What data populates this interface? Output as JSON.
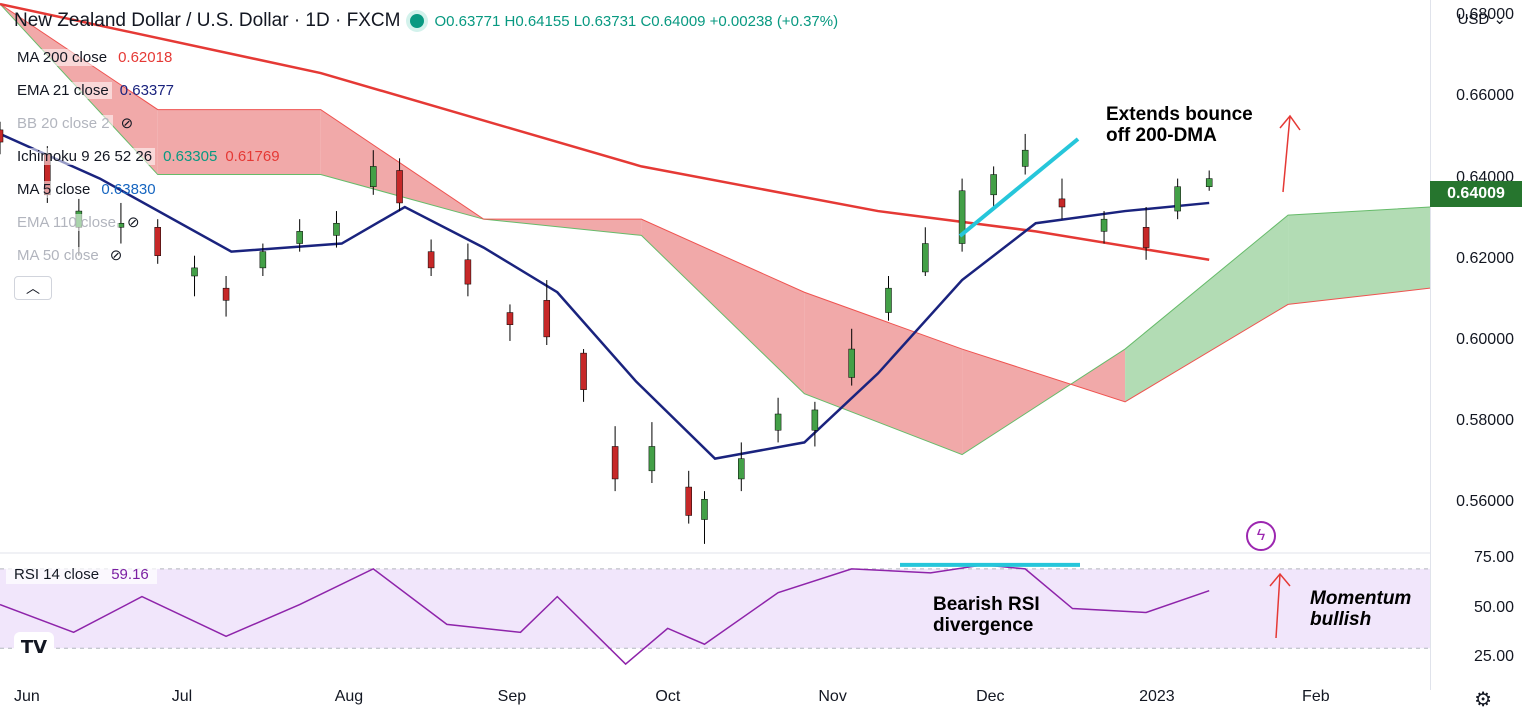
{
  "header": {
    "title": "New Zealand Dollar / U.S. Dollar · 1D · FXCM",
    "ohlc_text": "O0.63771 H0.64155 L0.63731 C0.64009 +0.00238 (+0.37%)"
  },
  "legend": [
    {
      "name": "MA 200 close",
      "value": "0.62018",
      "color": "#e53935",
      "faded": false
    },
    {
      "name": "EMA 21 close",
      "value": "0.63377",
      "color": "#1a237e",
      "faded": false
    },
    {
      "name": "BB 20 close 2",
      "value": "",
      "color": "#b2b5be",
      "faded": true,
      "hidden_icon": "eye-off-icon"
    },
    {
      "name": "Ichimoku 9 26 52 26",
      "value": "0.63305",
      "value2": "0.61769",
      "color": "#089981",
      "color2": "#e53935",
      "faded": false
    },
    {
      "name": "MA 5 close",
      "value": "0.63830",
      "color": "#1565c0",
      "faded": false
    },
    {
      "name": "EMA 110 close",
      "value": "",
      "color": "#b2b5be",
      "faded": true,
      "hidden_icon": "eye-off-icon"
    },
    {
      "name": "MA 50 close",
      "value": "",
      "color": "#b2b5be",
      "faded": true,
      "hidden_icon": "eye-off-icon"
    }
  ],
  "collapse_icon": "chevron-up-icon",
  "price_scale": {
    "currency": "USD",
    "currency_icon": "chevron-down-icon",
    "labels": [
      "0.68000",
      "0.66000",
      "0.64000",
      "0.62000",
      "0.60000",
      "0.58000",
      "0.56000"
    ],
    "last_price": "0.64009",
    "last_price_color": "#26752e"
  },
  "rsi": {
    "legend_name": "RSI 14 close",
    "legend_value": "59.16",
    "legend_color": "#7b1fa2",
    "labels": [
      "75.00",
      "50.00",
      "25.00"
    ],
    "band_color": "#f1e6fb",
    "upper": 70,
    "lower": 30
  },
  "time_axis": [
    "Jun",
    "Jul",
    "Aug",
    "Sep",
    "Oct",
    "Nov",
    "Dec",
    "2023",
    "Feb"
  ],
  "annotations": {
    "bounce": "Extends bounce\noff 200-DMA",
    "rsi_div": "Bearish RSI\ndivergence",
    "momentum": "Momentum\nbullish"
  },
  "colors": {
    "up": "#43a047",
    "down": "#c62828",
    "ma200": "#e53935",
    "ema21": "#1a237e",
    "ma5": "#1565c0",
    "cloud_bull": "#a5d6a7",
    "cloud_bear": "#ef9a9a",
    "trend_line": "#26c6da",
    "rsi_line": "#8e24aa"
  },
  "icons": {
    "logo": "tradingview-logo-icon",
    "settings": "gear-icon",
    "lightning": "lightning-icon"
  },
  "chart_data": {
    "type": "candlestick",
    "symbol": "NZDUSD",
    "timeframe": "1D",
    "ylim": [
      0.548,
      0.684
    ],
    "rsi_ylim": [
      18,
      78
    ],
    "x_range": [
      "2022-06-01",
      "2023-02-28"
    ],
    "candles": [
      {
        "date": "2022-06-01",
        "o": 0.652,
        "h": 0.654,
        "l": 0.646,
        "c": 0.649
      },
      {
        "date": "2022-06-10",
        "o": 0.646,
        "h": 0.648,
        "l": 0.634,
        "c": 0.636
      },
      {
        "date": "2022-06-16",
        "o": 0.628,
        "h": 0.635,
        "l": 0.621,
        "c": 0.632
      },
      {
        "date": "2022-06-24",
        "o": 0.628,
        "h": 0.634,
        "l": 0.624,
        "c": 0.629
      },
      {
        "date": "2022-07-01",
        "o": 0.628,
        "h": 0.63,
        "l": 0.619,
        "c": 0.621
      },
      {
        "date": "2022-07-08",
        "o": 0.616,
        "h": 0.621,
        "l": 0.611,
        "c": 0.618
      },
      {
        "date": "2022-07-14",
        "o": 0.613,
        "h": 0.616,
        "l": 0.606,
        "c": 0.61
      },
      {
        "date": "2022-07-21",
        "o": 0.618,
        "h": 0.624,
        "l": 0.616,
        "c": 0.622
      },
      {
        "date": "2022-07-28",
        "o": 0.624,
        "h": 0.63,
        "l": 0.622,
        "c": 0.627
      },
      {
        "date": "2022-08-04",
        "o": 0.626,
        "h": 0.632,
        "l": 0.623,
        "c": 0.629
      },
      {
        "date": "2022-08-11",
        "o": 0.638,
        "h": 0.647,
        "l": 0.636,
        "c": 0.643
      },
      {
        "date": "2022-08-16",
        "o": 0.642,
        "h": 0.645,
        "l": 0.632,
        "c": 0.634
      },
      {
        "date": "2022-08-22",
        "o": 0.622,
        "h": 0.625,
        "l": 0.616,
        "c": 0.618
      },
      {
        "date": "2022-08-29",
        "o": 0.62,
        "h": 0.624,
        "l": 0.611,
        "c": 0.614
      },
      {
        "date": "2022-09-06",
        "o": 0.607,
        "h": 0.609,
        "l": 0.6,
        "c": 0.604
      },
      {
        "date": "2022-09-13",
        "o": 0.61,
        "h": 0.615,
        "l": 0.599,
        "c": 0.601
      },
      {
        "date": "2022-09-20",
        "o": 0.597,
        "h": 0.598,
        "l": 0.585,
        "c": 0.588
      },
      {
        "date": "2022-09-26",
        "o": 0.574,
        "h": 0.579,
        "l": 0.563,
        "c": 0.566
      },
      {
        "date": "2022-10-03",
        "o": 0.568,
        "h": 0.58,
        "l": 0.565,
        "c": 0.574
      },
      {
        "date": "2022-10-10",
        "o": 0.564,
        "h": 0.568,
        "l": 0.555,
        "c": 0.557
      },
      {
        "date": "2022-10-13",
        "o": 0.556,
        "h": 0.563,
        "l": 0.55,
        "c": 0.561
      },
      {
        "date": "2022-10-20",
        "o": 0.566,
        "h": 0.575,
        "l": 0.563,
        "c": 0.571
      },
      {
        "date": "2022-10-27",
        "o": 0.578,
        "h": 0.586,
        "l": 0.575,
        "c": 0.582
      },
      {
        "date": "2022-11-03",
        "o": 0.578,
        "h": 0.585,
        "l": 0.574,
        "c": 0.583
      },
      {
        "date": "2022-11-10",
        "o": 0.591,
        "h": 0.603,
        "l": 0.589,
        "c": 0.598
      },
      {
        "date": "2022-11-17",
        "o": 0.607,
        "h": 0.616,
        "l": 0.605,
        "c": 0.613
      },
      {
        "date": "2022-11-24",
        "o": 0.617,
        "h": 0.628,
        "l": 0.616,
        "c": 0.624
      },
      {
        "date": "2022-12-01",
        "o": 0.624,
        "h": 0.64,
        "l": 0.622,
        "c": 0.637
      },
      {
        "date": "2022-12-07",
        "o": 0.636,
        "h": 0.643,
        "l": 0.633,
        "c": 0.641
      },
      {
        "date": "2022-12-13",
        "o": 0.643,
        "h": 0.651,
        "l": 0.641,
        "c": 0.647
      },
      {
        "date": "2022-12-20",
        "o": 0.635,
        "h": 0.64,
        "l": 0.63,
        "c": 0.633
      },
      {
        "date": "2022-12-28",
        "o": 0.627,
        "h": 0.632,
        "l": 0.624,
        "c": 0.63
      },
      {
        "date": "2023-01-05",
        "o": 0.628,
        "h": 0.633,
        "l": 0.62,
        "c": 0.623
      },
      {
        "date": "2023-01-11",
        "o": 0.632,
        "h": 0.64,
        "l": 0.63,
        "c": 0.638
      },
      {
        "date": "2023-01-17",
        "o": 0.638,
        "h": 0.642,
        "l": 0.637,
        "c": 0.64
      }
    ],
    "ma200": [
      {
        "date": "2022-06-01",
        "value": 0.683
      },
      {
        "date": "2022-08-01",
        "value": 0.666
      },
      {
        "date": "2022-10-01",
        "value": 0.643
      },
      {
        "date": "2022-11-15",
        "value": 0.632
      },
      {
        "date": "2022-12-15",
        "value": 0.627
      },
      {
        "date": "2023-01-17",
        "value": 0.62
      }
    ],
    "ema21": [
      {
        "date": "2022-06-01",
        "value": 0.651
      },
      {
        "date": "2022-06-20",
        "value": 0.64
      },
      {
        "date": "2022-07-15",
        "value": 0.622
      },
      {
        "date": "2022-08-05",
        "value": 0.624
      },
      {
        "date": "2022-08-17",
        "value": 0.633
      },
      {
        "date": "2022-09-01",
        "value": 0.623
      },
      {
        "date": "2022-09-15",
        "value": 0.612
      },
      {
        "date": "2022-09-30",
        "value": 0.59
      },
      {
        "date": "2022-10-15",
        "value": 0.571
      },
      {
        "date": "2022-11-01",
        "value": 0.575
      },
      {
        "date": "2022-11-15",
        "value": 0.592
      },
      {
        "date": "2022-12-01",
        "value": 0.615
      },
      {
        "date": "2022-12-15",
        "value": 0.629
      },
      {
        "date": "2023-01-01",
        "value": 0.632
      },
      {
        "date": "2023-01-17",
        "value": 0.634
      }
    ],
    "rsi": [
      {
        "date": "2022-06-01",
        "value": 52
      },
      {
        "date": "2022-06-15",
        "value": 38
      },
      {
        "date": "2022-06-28",
        "value": 56
      },
      {
        "date": "2022-07-14",
        "value": 36
      },
      {
        "date": "2022-07-28",
        "value": 52
      },
      {
        "date": "2022-08-11",
        "value": 70
      },
      {
        "date": "2022-08-25",
        "value": 42
      },
      {
        "date": "2022-09-08",
        "value": 38
      },
      {
        "date": "2022-09-15",
        "value": 56
      },
      {
        "date": "2022-09-28",
        "value": 22
      },
      {
        "date": "2022-10-06",
        "value": 40
      },
      {
        "date": "2022-10-13",
        "value": 32
      },
      {
        "date": "2022-10-27",
        "value": 58
      },
      {
        "date": "2022-11-10",
        "value": 70
      },
      {
        "date": "2022-11-25",
        "value": 68
      },
      {
        "date": "2022-12-05",
        "value": 72
      },
      {
        "date": "2022-12-13",
        "value": 70
      },
      {
        "date": "2022-12-22",
        "value": 50
      },
      {
        "date": "2023-01-05",
        "value": 48
      },
      {
        "date": "2023-01-17",
        "value": 59
      }
    ],
    "ichimoku_cloud": [
      {
        "date": "2022-06-01",
        "a": 0.683,
        "b": 0.683
      },
      {
        "date": "2022-07-01",
        "a": 0.641,
        "b": 0.657
      },
      {
        "date": "2022-08-01",
        "a": 0.641,
        "b": 0.657
      },
      {
        "date": "2022-09-01",
        "a": 0.63,
        "b": 0.63
      },
      {
        "date": "2022-10-01",
        "a": 0.626,
        "b": 0.63
      },
      {
        "date": "2022-11-01",
        "a": 0.587,
        "b": 0.612
      },
      {
        "date": "2022-12-01",
        "a": 0.572,
        "b": 0.598
      },
      {
        "date": "2023-01-01",
        "a": 0.598,
        "b": 0.585
      },
      {
        "date": "2023-02-01",
        "a": 0.631,
        "b": 0.609
      },
      {
        "date": "2023-02-28",
        "a": 0.633,
        "b": 0.613
      }
    ]
  }
}
